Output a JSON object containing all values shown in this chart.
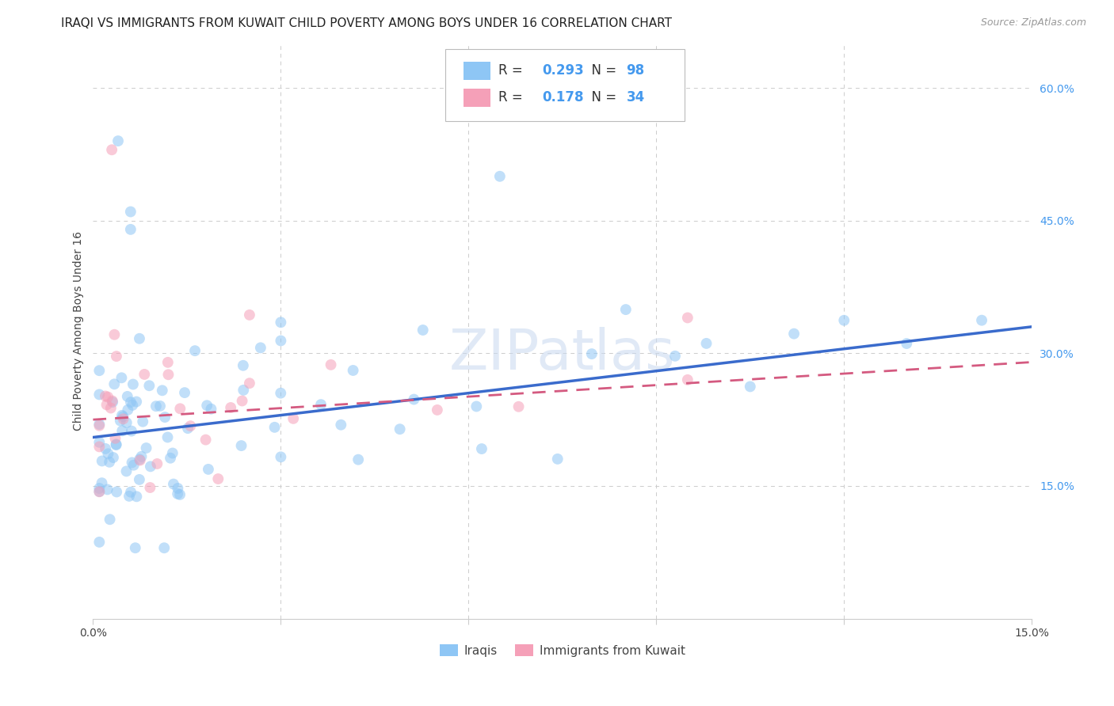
{
  "title": "IRAQI VS IMMIGRANTS FROM KUWAIT CHILD POVERTY AMONG BOYS UNDER 16 CORRELATION CHART",
  "source": "Source: ZipAtlas.com",
  "ylabel": "Child Poverty Among Boys Under 16",
  "xlim": [
    0.0,
    0.15
  ],
  "ylim": [
    0.0,
    0.65
  ],
  "xticks": [
    0.0,
    0.03,
    0.06,
    0.09,
    0.12,
    0.15
  ],
  "xtick_labels": [
    "0.0%",
    "",
    "",
    "",
    "",
    "15.0%"
  ],
  "yticks_right": [
    0.15,
    0.3,
    0.45,
    0.6
  ],
  "ytick_labels_right": [
    "15.0%",
    "30.0%",
    "45.0%",
    "60.0%"
  ],
  "grid_color": "#cccccc",
  "background_color": "#ffffff",
  "watermark_text": "ZIPatlas",
  "series": [
    {
      "name": "Iraqis",
      "R": "0.293",
      "N": "98",
      "color": "#8ec6f5",
      "line_color": "#3a6bcc",
      "scatter_alpha": 0.55,
      "marker_size": 100,
      "trend_x": [
        0.0,
        0.15
      ],
      "trend_y": [
        0.205,
        0.33
      ],
      "trend_style": "solid",
      "trend_lw": 2.5
    },
    {
      "name": "Immigrants from Kuwait",
      "R": "0.178",
      "N": "34",
      "color": "#f5a0b8",
      "line_color": "#d45a80",
      "scatter_alpha": 0.55,
      "marker_size": 100,
      "trend_x": [
        0.0,
        0.15
      ],
      "trend_y": [
        0.225,
        0.29
      ],
      "trend_style": "dashed",
      "trend_lw": 2.0
    }
  ],
  "legend_color": "#4499ee",
  "legend_R_color": "#4499ee",
  "legend_N_color": "#4499ee",
  "title_fontsize": 11,
  "axis_label_fontsize": 10,
  "tick_fontsize": 10,
  "source_fontsize": 9
}
